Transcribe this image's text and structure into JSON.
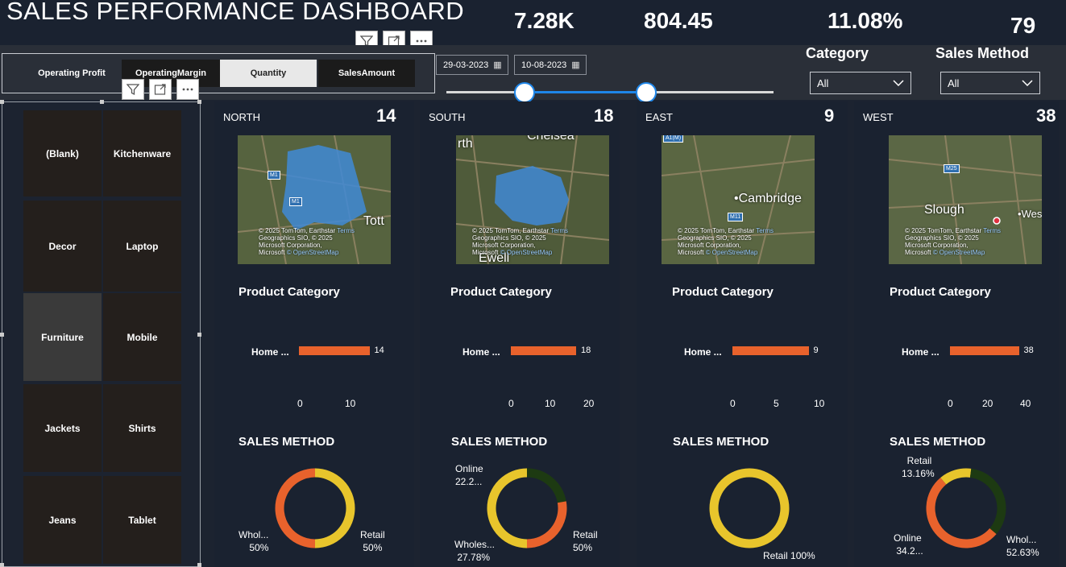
{
  "title": "SALES PERFORMANCE DASHBOARD",
  "kpis": [
    "7.28K",
    "804.45",
    "11.08%",
    "79"
  ],
  "tabs": [
    "Operating Profit",
    "OperatingMargin",
    "Quantity",
    "SalesAmount"
  ],
  "active_tab": "Quantity",
  "date_start": "29-03-2023",
  "date_end": "10-08-2023",
  "filters": {
    "category": {
      "label": "Category",
      "value": "All"
    },
    "sales_method": {
      "label": "Sales Method",
      "value": "All"
    }
  },
  "slider": {
    "start_fraction": 0.24,
    "end_fraction": 0.61
  },
  "categories": [
    "(Blank)",
    "Kitchenware",
    "Decor",
    "Laptop",
    "Furniture",
    "Mobile",
    "Jackets",
    "Shirts",
    "Jeans",
    "Tablet"
  ],
  "selected_category": "Furniture",
  "map_attribution": [
    "© 2025 TomTom, Earthstar",
    "Geographics SIO, © 2025",
    "Microsoft Corporation,",
    "© OpenStreetMap"
  ],
  "map_terms": "Terms",
  "map_brand": "Microsoft",
  "regions": [
    {
      "name": "NORTH",
      "count": "14",
      "city": "Tott",
      "city2": "",
      "road1": "M1",
      "road2": "M1"
    },
    {
      "name": "SOUTH",
      "count": "18",
      "city": "Chelsea",
      "city2": "Ewell",
      "road1": "",
      "road2": ""
    },
    {
      "name": "EAST",
      "count": "9",
      "city": "Cambridge",
      "city2": "",
      "road1": "A1(M)",
      "road2": "M11"
    },
    {
      "name": "WEST",
      "count": "38",
      "city": "Slough",
      "city2": "Wes",
      "road1": "M25",
      "road2": ""
    }
  ],
  "product_category_title": "Product Category",
  "sales_method_title": "SALES METHOD",
  "chart_data": [
    {
      "type": "bar",
      "title": "Product Category",
      "categories": [
        "Home ..."
      ],
      "values": [
        14
      ],
      "xlim": [
        0,
        15
      ],
      "ticks": [
        "0",
        "10"
      ]
    },
    {
      "type": "bar",
      "title": "Product Category",
      "categories": [
        "Home ..."
      ],
      "values": [
        18
      ],
      "xlim": [
        0,
        20
      ],
      "ticks": [
        "0",
        "10",
        "20"
      ]
    },
    {
      "type": "bar",
      "title": "Product Category",
      "categories": [
        "Home ..."
      ],
      "values": [
        9
      ],
      "xlim": [
        0,
        10
      ],
      "ticks": [
        "0",
        "5",
        "10"
      ]
    },
    {
      "type": "bar",
      "title": "Product Category",
      "categories": [
        "Home ..."
      ],
      "values": [
        38
      ],
      "xlim": [
        0,
        40
      ],
      "ticks": [
        "0",
        "20",
        "40"
      ]
    },
    {
      "type": "pie",
      "title": "SALES METHOD",
      "slices": [
        {
          "label": "Whol...",
          "value": 50,
          "pct": "50%",
          "color": "#e8622c"
        },
        {
          "label": "Retail",
          "value": 50,
          "pct": "50%",
          "color": "#e8c52c"
        }
      ]
    },
    {
      "type": "pie",
      "title": "SALES METHOD",
      "slices": [
        {
          "label": "Online",
          "value": 22.22,
          "pct": "22.2...",
          "color": "#1d3a12"
        },
        {
          "label": "Wholes...",
          "value": 27.78,
          "pct": "27.78%",
          "color": "#e8622c"
        },
        {
          "label": "Retail",
          "value": 50,
          "pct": "50%",
          "color": "#e8c52c"
        }
      ]
    },
    {
      "type": "pie",
      "title": "SALES METHOD",
      "slices": [
        {
          "label": "Retail",
          "value": 100,
          "pct": "100%",
          "color": "#e8c52c"
        }
      ]
    },
    {
      "type": "pie",
      "title": "SALES METHOD",
      "slices": [
        {
          "label": "Retail",
          "value": 13.16,
          "pct": "13.16%",
          "color": "#e8c52c"
        },
        {
          "label": "Online",
          "value": 34.21,
          "pct": "34.2...",
          "color": "#1d3a12"
        },
        {
          "label": "Whol...",
          "value": 52.63,
          "pct": "52.63%",
          "color": "#e8622c"
        }
      ]
    }
  ],
  "colors": {
    "bar": "#e8622c",
    "retail": "#e8c52c",
    "wholesale": "#e8622c",
    "online": "#1d3a12",
    "accent": "#1f86e8"
  }
}
